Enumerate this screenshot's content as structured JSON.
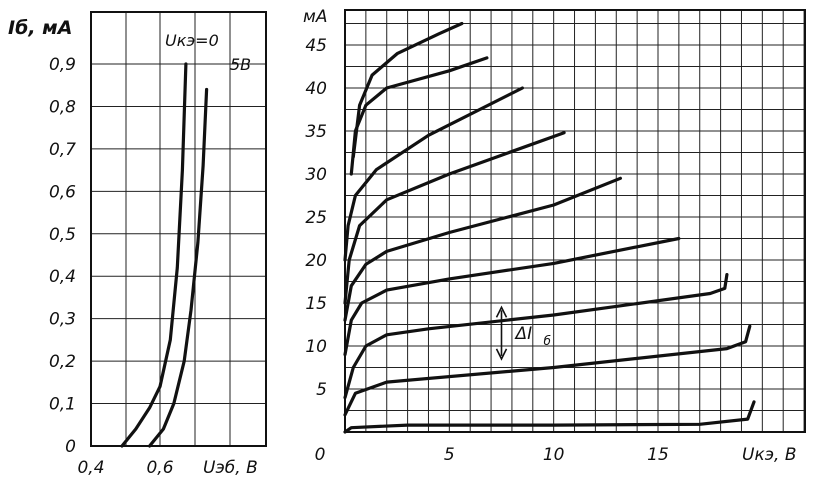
{
  "chart_data": [
    {
      "type": "line",
      "ylabel": "Iб, мА",
      "xlabel": "Uэб, В",
      "xlim": [
        0.4,
        0.78
      ],
      "ylim": [
        0,
        0.95
      ],
      "x_ticks": [
        0.4,
        0.6
      ],
      "x_tick_labels": [
        "0,4",
        "0,6"
      ],
      "y_ticks": [
        0,
        0.1,
        0.2,
        0.3,
        0.4,
        0.5,
        0.6,
        0.7,
        0.8,
        0.9
      ],
      "y_tick_labels": [
        "0",
        "0,1",
        "0,2",
        "0,3",
        "0,4",
        "0,5",
        "0,6",
        "0,7",
        "0,8",
        "0,9"
      ],
      "grid": true,
      "series": [
        {
          "name": "Uкэ=0",
          "x": [
            0.49,
            0.53,
            0.57,
            0.6,
            0.63,
            0.65,
            0.665,
            0.675
          ],
          "y": [
            0,
            0.04,
            0.09,
            0.14,
            0.25,
            0.42,
            0.65,
            0.9
          ]
        },
        {
          "name": "5В",
          "x": [
            0.57,
            0.61,
            0.64,
            0.67,
            0.69,
            0.71,
            0.725,
            0.735
          ],
          "y": [
            0,
            0.04,
            0.1,
            0.2,
            0.32,
            0.48,
            0.66,
            0.84
          ]
        }
      ]
    },
    {
      "type": "line",
      "ylabel": "мА",
      "xlabel": "Uкэ, В",
      "xlim": [
        0,
        20
      ],
      "ylim": [
        0,
        48
      ],
      "x_ticks": [
        0,
        5,
        10,
        15
      ],
      "x_tick_labels": [
        "0",
        "5",
        "10",
        "15"
      ],
      "y_ticks": [
        5,
        10,
        15,
        20,
        25,
        30,
        35,
        40,
        45
      ],
      "y_tick_labels": [
        "5",
        "10",
        "15",
        "20",
        "25",
        "30",
        "35",
        "40",
        "45"
      ],
      "grid": true,
      "annotation": {
        "label": "ΔI",
        "sub": "б",
        "x": 7.5,
        "y1": 8.5,
        "y2": 14.5
      },
      "series": [
        {
          "x": [
            0,
            0.3,
            3,
            10,
            17,
            19.3,
            19.6
          ],
          "y": [
            0,
            0.5,
            0.8,
            0.8,
            0.9,
            1.5,
            3.5
          ]
        },
        {
          "x": [
            0,
            0.5,
            2,
            10,
            18.3,
            19.2,
            19.4
          ],
          "y": [
            2,
            4.5,
            5.8,
            7.5,
            9.7,
            10.5,
            12.3
          ]
        },
        {
          "x": [
            0,
            0.4,
            1,
            2,
            4,
            10,
            17.5,
            18.2,
            18.3
          ],
          "y": [
            4,
            7.5,
            10,
            11.3,
            12,
            13.6,
            16.1,
            16.7,
            18.3
          ]
        },
        {
          "x": [
            0,
            0.3,
            0.8,
            2,
            5,
            10,
            16
          ],
          "y": [
            9,
            13,
            15,
            16.5,
            17.8,
            19.6,
            22.5
          ]
        },
        {
          "x": [
            0,
            0.3,
            1,
            2,
            5,
            10,
            13.2
          ],
          "y": [
            13,
            17,
            19.5,
            21,
            23.2,
            26.4,
            29.5
          ]
        },
        {
          "x": [
            0,
            0.2,
            0.7,
            2,
            5,
            10.5
          ],
          "y": [
            15,
            20,
            24,
            27,
            30,
            34.8
          ]
        },
        {
          "x": [
            0,
            0.15,
            0.5,
            1.5,
            4,
            8.5
          ],
          "y": [
            20,
            24,
            27.5,
            30.5,
            34.5,
            40
          ]
        },
        {
          "x": [
            0.3,
            0.5,
            1,
            2,
            5,
            6.8
          ],
          "y": [
            30,
            35,
            38,
            40,
            42,
            43.5
          ]
        },
        {
          "x": [
            0.4,
            0.7,
            1.3,
            2.5,
            4.5,
            5.6
          ],
          "y": [
            32,
            38,
            41.5,
            44,
            46.3,
            47.5
          ]
        }
      ]
    }
  ]
}
